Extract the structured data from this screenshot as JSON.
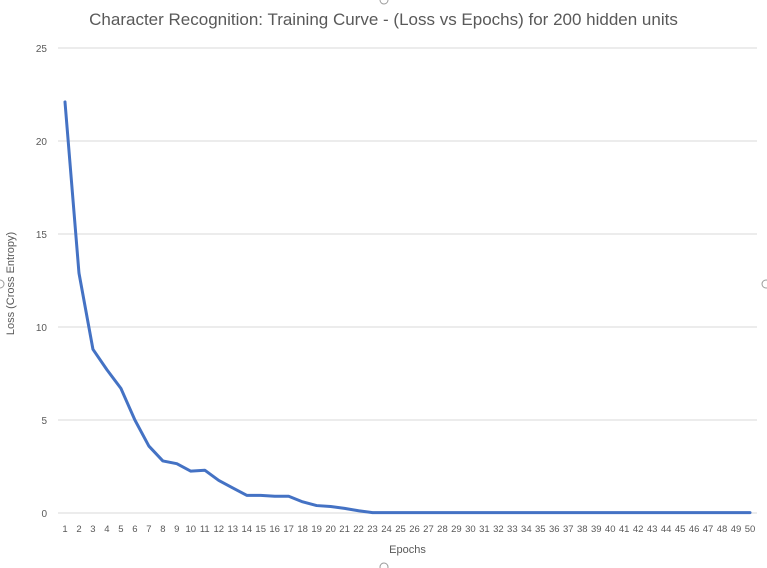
{
  "chart_data": {
    "type": "line",
    "title": "Character Recognition: Training Curve - (Loss vs Epochs) for 200 hidden units",
    "xlabel": "Epochs",
    "ylabel": "Loss (Cross Entropy)",
    "ylim": [
      0,
      25
    ],
    "yticks": [
      0,
      5,
      10,
      15,
      20,
      25
    ],
    "grid": true,
    "legend": "none",
    "color": "#4472C4",
    "x": [
      1,
      2,
      3,
      4,
      5,
      6,
      7,
      8,
      9,
      10,
      11,
      12,
      13,
      14,
      15,
      16,
      17,
      18,
      19,
      20,
      21,
      22,
      23,
      24,
      25,
      26,
      27,
      28,
      29,
      30,
      31,
      32,
      33,
      34,
      35,
      36,
      37,
      38,
      39,
      40,
      41,
      42,
      43,
      44,
      45,
      46,
      47,
      48,
      49,
      50
    ],
    "series": [
      {
        "values": [
          22.1,
          12.9,
          8.8,
          7.7,
          6.7,
          5.0,
          3.6,
          2.8,
          2.65,
          2.25,
          2.3,
          1.75,
          1.35,
          0.95,
          0.95,
          0.9,
          0.9,
          0.6,
          0.4,
          0.35,
          0.25,
          0.12,
          0.02,
          0.02,
          0.02,
          0.02,
          0.02,
          0.02,
          0.02,
          0.02,
          0.02,
          0.02,
          0.02,
          0.02,
          0.02,
          0.02,
          0.02,
          0.02,
          0.02,
          0.02,
          0.02,
          0.02,
          0.02,
          0.02,
          0.02,
          0.02,
          0.02,
          0.02,
          0.02,
          0.02
        ]
      }
    ]
  }
}
